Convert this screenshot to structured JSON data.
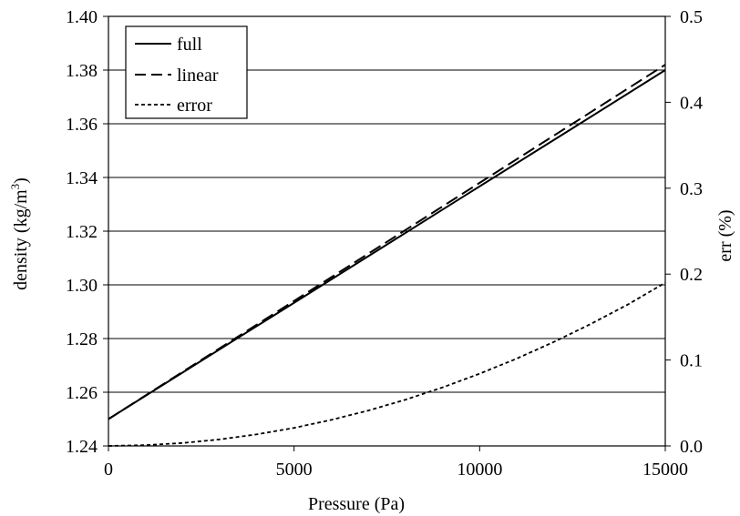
{
  "chart_data": {
    "type": "line",
    "xlabel": "Pressure (Pa)",
    "ylabel": {
      "main": "density (kg/m",
      "sup": "3",
      "tail": ")"
    },
    "y2label": "err (%)",
    "xlim": [
      0,
      15000
    ],
    "ylim": [
      1.24,
      1.4
    ],
    "y2lim": [
      0.0,
      0.5
    ],
    "xticks": [
      "0",
      "5000",
      "10000",
      "15000"
    ],
    "yticks": [
      "1.24",
      "1.26",
      "1.28",
      "1.30",
      "1.32",
      "1.34",
      "1.36",
      "1.38",
      "1.40"
    ],
    "y2ticks": [
      "0.0",
      "0.1",
      "0.2",
      "0.3",
      "0.4",
      "0.5"
    ],
    "grid": "horizontal",
    "legend_position": "top-left",
    "series": [
      {
        "name": "full",
        "axis": "left",
        "style": "solid",
        "x": [
          0,
          2500,
          5000,
          7500,
          10000,
          12500,
          15000
        ],
        "values": [
          1.25,
          1.2717,
          1.2933,
          1.315,
          1.3367,
          1.3583,
          1.38
        ]
      },
      {
        "name": "linear",
        "axis": "left",
        "style": "dashed",
        "x": [
          0,
          2500,
          5000,
          7500,
          10000,
          12500,
          15000
        ],
        "values": [
          1.25,
          1.272,
          1.294,
          1.316,
          1.338,
          1.36,
          1.382
        ]
      },
      {
        "name": "error",
        "axis": "right",
        "style": "dotted",
        "x": [
          0,
          1000,
          2000,
          3000,
          4000,
          5000,
          6000,
          7000,
          8000,
          9000,
          10000,
          11000,
          12000,
          13000,
          14000,
          15000
        ],
        "values": [
          0.0,
          0.0009,
          0.0034,
          0.0076,
          0.0135,
          0.021,
          0.0303,
          0.0412,
          0.0538,
          0.0681,
          0.0841,
          0.1017,
          0.1211,
          0.1421,
          0.1648,
          0.19
        ]
      }
    ]
  },
  "colors": {
    "line": "#000000",
    "grid": "#000000",
    "background": "#ffffff"
  }
}
